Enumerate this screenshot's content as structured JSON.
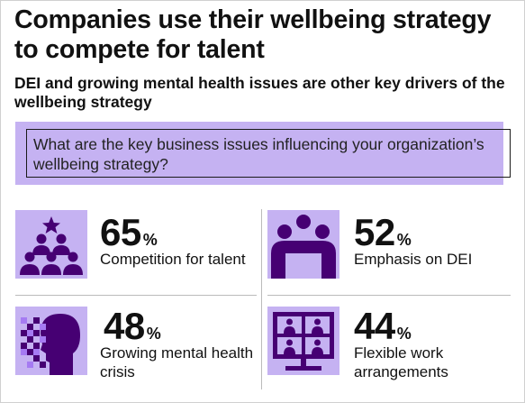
{
  "header": {
    "title": "Companies use their wellbeing strategy to compete for talent",
    "subtitle": "DEI and growing mental health issues are other key drivers of the wellbeing strategy"
  },
  "question": "What are the key business issues influencing your organization’s wellbeing strategy?",
  "colors": {
    "accent_purple": "#a57bf2",
    "light_purple": "#c5b2f2",
    "dark_purple": "#460073"
  },
  "stats": [
    {
      "value": "65",
      "unit": "%",
      "label": "Competition for talent",
      "icon": "people-star-icon"
    },
    {
      "value": "52",
      "unit": "%",
      "label": "Emphasis on DEI",
      "icon": "group-icon"
    },
    {
      "value": "48",
      "unit": "%",
      "label": "Growing mental health crisis",
      "icon": "pixel-head-icon"
    },
    {
      "value": "44",
      "unit": "%",
      "label": "Flexible work arrangements",
      "icon": "video-call-icon"
    }
  ]
}
